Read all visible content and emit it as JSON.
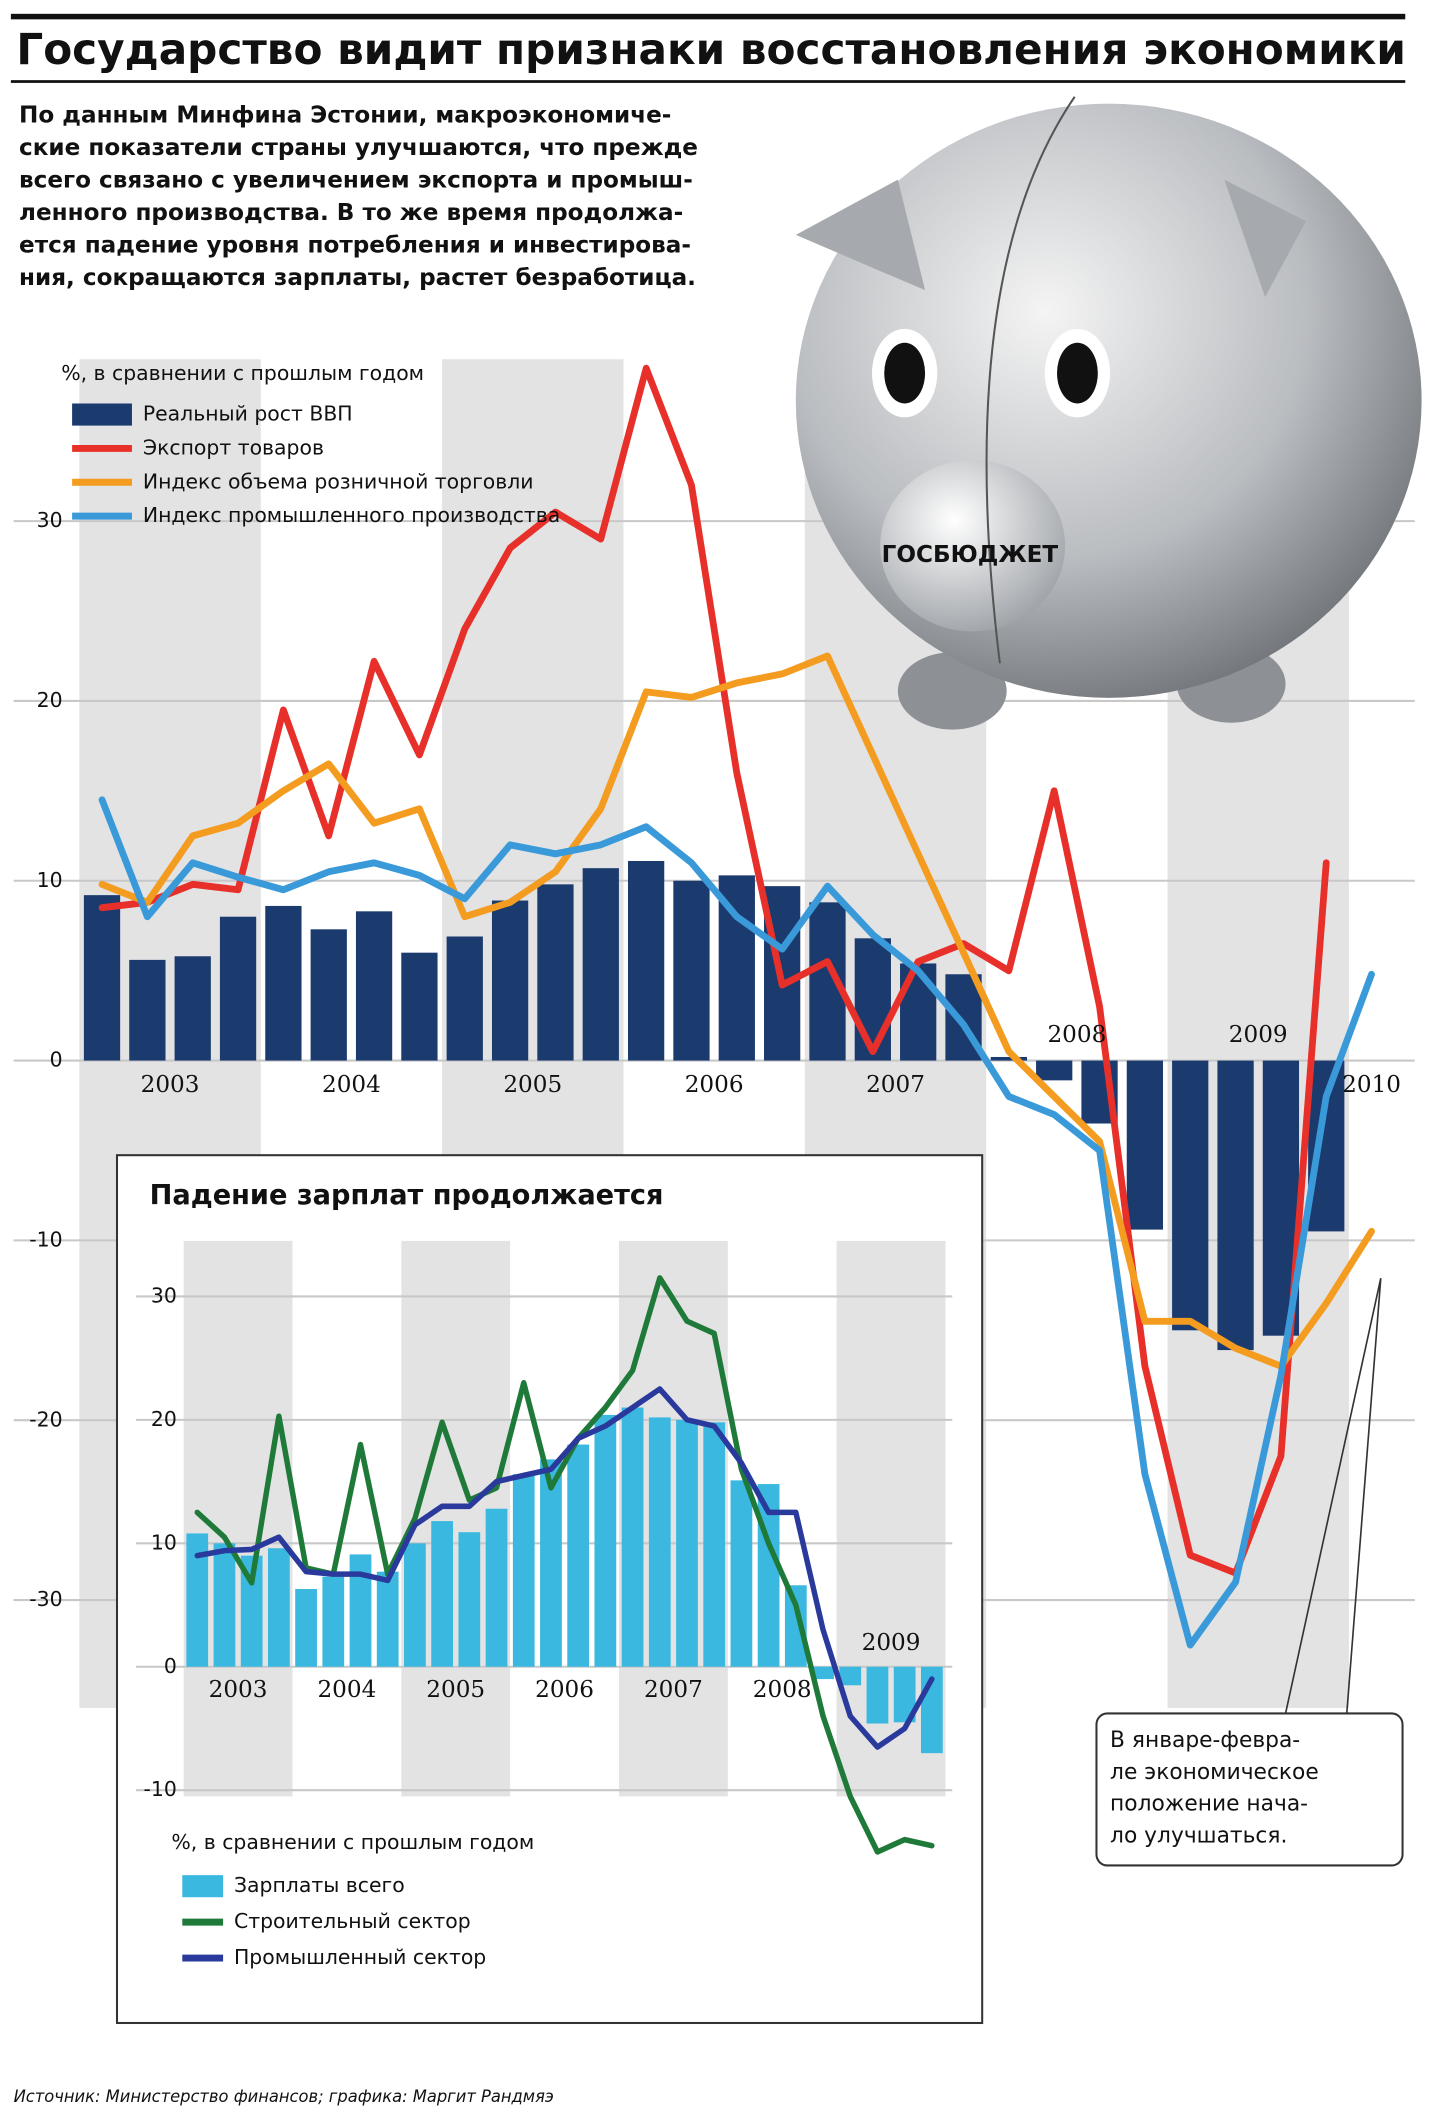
{
  "title": "Государство видит признаки восстановления экономики",
  "intro": [
    "По данным Минфина Эстонии, макроэкономиче-",
    "ские показатели страны улучшаются, что прежде",
    "всего связано с увеличением экспорта и промыш-",
    "ленного производства. В то же время продолжа-",
    "ется падение уровня потребления и инвестирова-",
    "ния, сокращаются зарплаты, растет безработица."
  ],
  "pig_label": "ГОСБЮДЖЕТ",
  "note": [
    "В январе-февра-",
    "ле экономическое",
    "положение нача-",
    "ло улучшаться."
  ],
  "source": "Источник: Министерство финансов; графика: Маргит Рандмяэ",
  "chart_data": [
    {
      "type": "bar-line",
      "unit_label": "%, в сравнении с прошлым годом",
      "categories": [
        "2003",
        null,
        null,
        null,
        "2004",
        null,
        null,
        null,
        "2005",
        null,
        null,
        null,
        "2006",
        null,
        null,
        null,
        "2007",
        null,
        null,
        null,
        "2008",
        null,
        null,
        null,
        "2009",
        null,
        null,
        null,
        "2010"
      ],
      "series": [
        {
          "name": "Реальный рост ВВП",
          "kind": "bar",
          "color": "#1b3b6f",
          "values": [
            9.2,
            5.6,
            5.8,
            8.0,
            8.6,
            7.3,
            8.3,
            6.0,
            6.9,
            8.9,
            9.8,
            10.7,
            11.1,
            10.0,
            10.3,
            9.7,
            8.8,
            6.8,
            5.4,
            4.8,
            0.2,
            -1.1,
            -3.5,
            -9.4,
            -15.0,
            -16.1,
            -15.3,
            -9.5,
            null
          ]
        },
        {
          "name": "Экспорт товаров",
          "kind": "line",
          "color": "#e8302a",
          "values": [
            8.5,
            8.8,
            9.8,
            9.5,
            19.5,
            12.5,
            22.2,
            17.0,
            24.0,
            28.5,
            30.5,
            29.0,
            38.5,
            32.0,
            16.0,
            4.2,
            5.5,
            0.5,
            5.5,
            6.5,
            5.0,
            15.0,
            3.0,
            -17.0,
            -27.5,
            -28.5,
            -22.0,
            11.0,
            null
          ]
        },
        {
          "name": "Индекс объема розничной торговли",
          "kind": "line",
          "color": "#f39c20",
          "values": [
            9.8,
            8.8,
            12.5,
            13.2,
            15.0,
            16.5,
            13.2,
            14.0,
            8.0,
            8.8,
            10.5,
            14.0,
            20.5,
            20.2,
            21.0,
            21.5,
            22.5,
            17.0,
            11.5,
            6.0,
            0.5,
            -2.0,
            -4.5,
            -14.5,
            -14.5,
            -16.0,
            -17.0,
            -13.5,
            -9.5
          ]
        },
        {
          "name": "Индекс промышленного производства",
          "kind": "line",
          "color": "#3a9ad9",
          "values": [
            14.5,
            8.0,
            11.0,
            10.2,
            9.5,
            10.5,
            11.0,
            10.3,
            9.0,
            12.0,
            11.5,
            12.0,
            13.0,
            11.0,
            8.0,
            6.2,
            9.7,
            7.0,
            5.0,
            2.0,
            -2.0,
            -3.0,
            -5.0,
            -23.0,
            -32.5,
            -29.0,
            -17.5,
            -2.0,
            4.8
          ]
        }
      ],
      "ylim": [
        -36,
        39
      ],
      "yticks": [
        -30,
        -20,
        -10,
        0,
        10,
        20,
        30
      ],
      "grid": true
    },
    {
      "type": "bar-line",
      "title": "Падение зарплат продолжается",
      "unit_label": "%, в сравнении с прошлым годом",
      "categories": [
        "2003",
        null,
        null,
        null,
        "2004",
        null,
        null,
        null,
        "2005",
        null,
        null,
        null,
        "2006",
        null,
        null,
        null,
        "2007",
        null,
        null,
        null,
        "2008",
        null,
        null,
        null,
        "2009",
        null,
        null,
        null
      ],
      "series": [
        {
          "name": "Зарплаты всего",
          "kind": "bar",
          "color": "#3bb8e0",
          "values": [
            10.8,
            10.0,
            9.0,
            9.6,
            6.3,
            7.3,
            9.1,
            7.7,
            10.0,
            11.8,
            10.9,
            12.8,
            15.6,
            16.8,
            18.0,
            20.4,
            21.0,
            20.2,
            20.0,
            19.8,
            15.1,
            14.8,
            6.6,
            -1.0,
            -1.5,
            -4.6,
            -4.5,
            -7.0
          ]
        },
        {
          "name": "Строительный сектор",
          "kind": "line",
          "color": "#1f7a3a",
          "values": [
            12.5,
            10.5,
            6.8,
            20.3,
            8.0,
            7.5,
            18.0,
            7.5,
            12.0,
            19.8,
            13.5,
            14.5,
            23.0,
            14.5,
            18.5,
            21.0,
            24.0,
            31.5,
            28.0,
            27.0,
            16.0,
            10.0,
            5.0,
            -4.0,
            -10.5,
            -15.0,
            -14.0,
            -14.5
          ]
        },
        {
          "name": "Промышленный сектор",
          "kind": "line",
          "color": "#2a3a9c",
          "values": [
            9.0,
            9.4,
            9.5,
            10.5,
            7.7,
            7.5,
            7.5,
            7.0,
            11.5,
            13.0,
            13.0,
            15.0,
            15.5,
            16.0,
            18.5,
            19.5,
            21.0,
            22.5,
            20.0,
            19.5,
            16.5,
            12.5,
            12.5,
            3.0,
            -4.0,
            -6.5,
            -5.0,
            -1.0
          ]
        }
      ],
      "ylim": [
        -10.5,
        34.5
      ],
      "yticks": [
        -10,
        0,
        10,
        20,
        30
      ],
      "grid": true
    }
  ]
}
